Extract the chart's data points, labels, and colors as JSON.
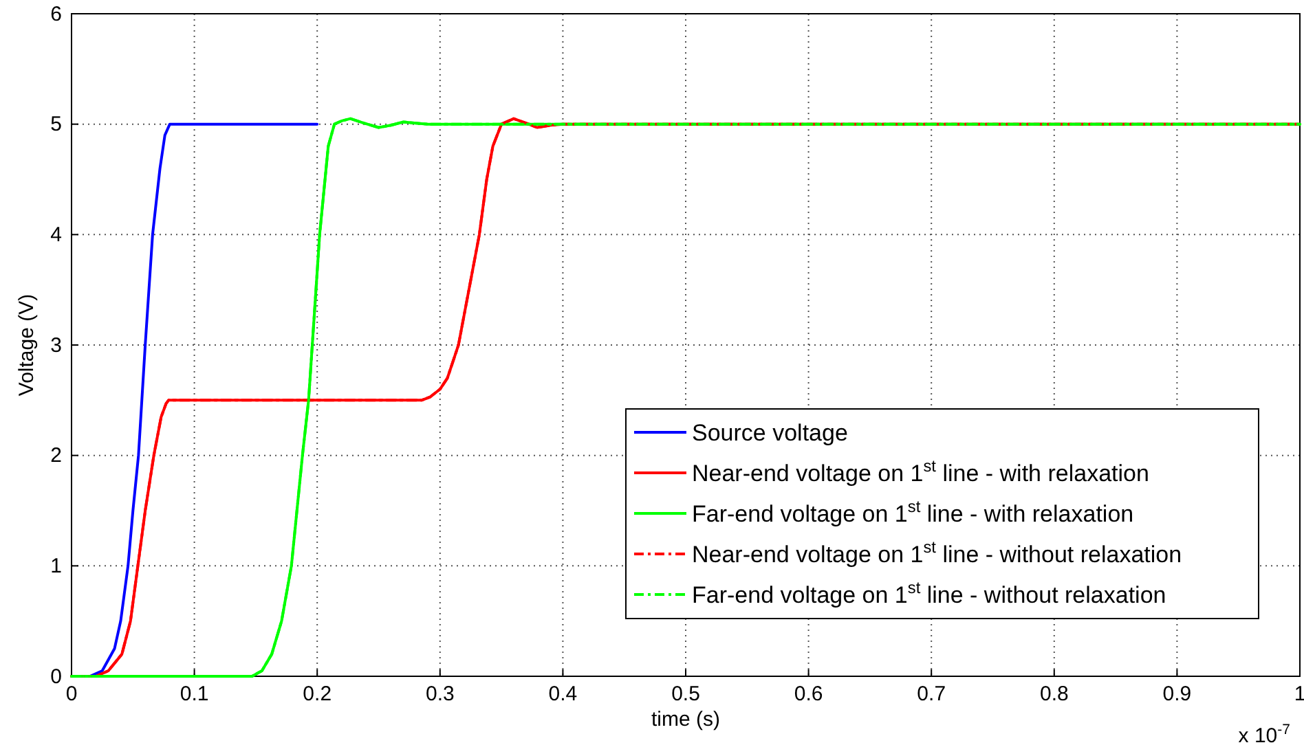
{
  "chart_data": {
    "type": "line",
    "xlabel": "time (s)",
    "ylabel": "Voltage (V)",
    "xlim": [
      0,
      1
    ],
    "xticks": [
      0,
      0.1,
      0.2,
      0.3,
      0.4,
      0.5,
      0.6,
      0.7,
      0.8,
      0.9,
      1
    ],
    "ylim": [
      0,
      6
    ],
    "yticks": [
      0,
      1,
      2,
      3,
      4,
      5,
      6
    ],
    "grid": true,
    "legend": "bottom right",
    "marker": "none",
    "annotations": [
      "x 10$^{-7}$"
    ],
    "series": [
      {
        "name": "Source voltage",
        "color": "#0000ff",
        "line_style": "solid",
        "x": [
          0,
          0.015,
          0.025,
          0.035,
          0.04,
          0.046,
          0.05,
          0.0545,
          0.06,
          0.066,
          0.072,
          0.076,
          0.08,
          0.2
        ],
        "values": [
          0,
          0,
          0.05,
          0.25,
          0.5,
          1,
          1.5,
          2,
          3,
          4,
          4.6,
          4.9,
          5,
          5
        ]
      },
      {
        "name": "Near-end voltage on 1$^{st}$ line - with relaxation",
        "color": "#ff0000",
        "line_style": "solid",
        "x": [
          0,
          0.02,
          0.03,
          0.041,
          0.048,
          0.054,
          0.06,
          0.067,
          0.073,
          0.077,
          0.079,
          0.2,
          0.285,
          0.292,
          0.3,
          0.306,
          0.315,
          0.332,
          0.338,
          0.343,
          0.35,
          0.36,
          0.37,
          0.379,
          0.39,
          0.4,
          1
        ],
        "values": [
          0,
          0,
          0.05,
          0.2,
          0.5,
          1,
          1.5,
          2,
          2.35,
          2.47,
          2.5,
          2.5,
          2.5,
          2.53,
          2.6,
          2.7,
          3,
          4,
          4.5,
          4.8,
          5,
          5.05,
          5.01,
          4.97,
          4.99,
          5,
          5
        ]
      },
      {
        "name": "Far-end voltage on 1$^{st}$ line - with relaxation",
        "color": "#00ff00",
        "line_style": "solid",
        "x": [
          0,
          0.147,
          0.155,
          0.163,
          0.171,
          0.179,
          0.188,
          0.193,
          0.196,
          0.202,
          0.209,
          0.214,
          0.22,
          0.227,
          0.238,
          0.25,
          0.26,
          0.27,
          0.29,
          1
        ],
        "values": [
          0,
          0,
          0.05,
          0.2,
          0.5,
          1,
          2,
          2.5,
          3,
          4,
          4.8,
          5,
          5.03,
          5.05,
          5.01,
          4.97,
          4.99,
          5.02,
          5,
          5
        ]
      },
      {
        "name": "Near-end voltage on 1$^{st}$ line - without relaxation",
        "color": "#ff0000",
        "line_style": "dashed",
        "x": [
          0,
          0.02,
          0.03,
          0.041,
          0.048,
          0.054,
          0.06,
          0.067,
          0.073,
          0.077,
          0.079,
          0.2,
          0.285,
          0.292,
          0.3,
          0.306,
          0.315,
          0.332,
          0.338,
          0.343,
          0.35,
          0.36,
          0.37,
          0.379,
          0.39,
          0.4,
          1
        ],
        "values": [
          0,
          0,
          0.05,
          0.2,
          0.5,
          1,
          1.5,
          2,
          2.35,
          2.47,
          2.5,
          2.5,
          2.5,
          2.53,
          2.6,
          2.7,
          3,
          4,
          4.5,
          4.8,
          5,
          5.05,
          5.01,
          4.97,
          4.99,
          5,
          5
        ]
      },
      {
        "name": "Far-end voltage on 1$^{st}$ line - without relaxation",
        "color": "#00ff00",
        "line_style": "dashed",
        "x": [
          0,
          0.147,
          0.155,
          0.163,
          0.171,
          0.179,
          0.188,
          0.193,
          0.196,
          0.202,
          0.209,
          0.214,
          0.22,
          0.227,
          0.238,
          0.25,
          0.26,
          0.27,
          0.29,
          1
        ],
        "values": [
          0,
          0,
          0.05,
          0.2,
          0.5,
          1,
          2,
          2.5,
          3,
          4,
          4.8,
          5,
          5.03,
          5.05,
          5.01,
          4.97,
          4.99,
          5.02,
          5,
          5
        ]
      }
    ]
  }
}
